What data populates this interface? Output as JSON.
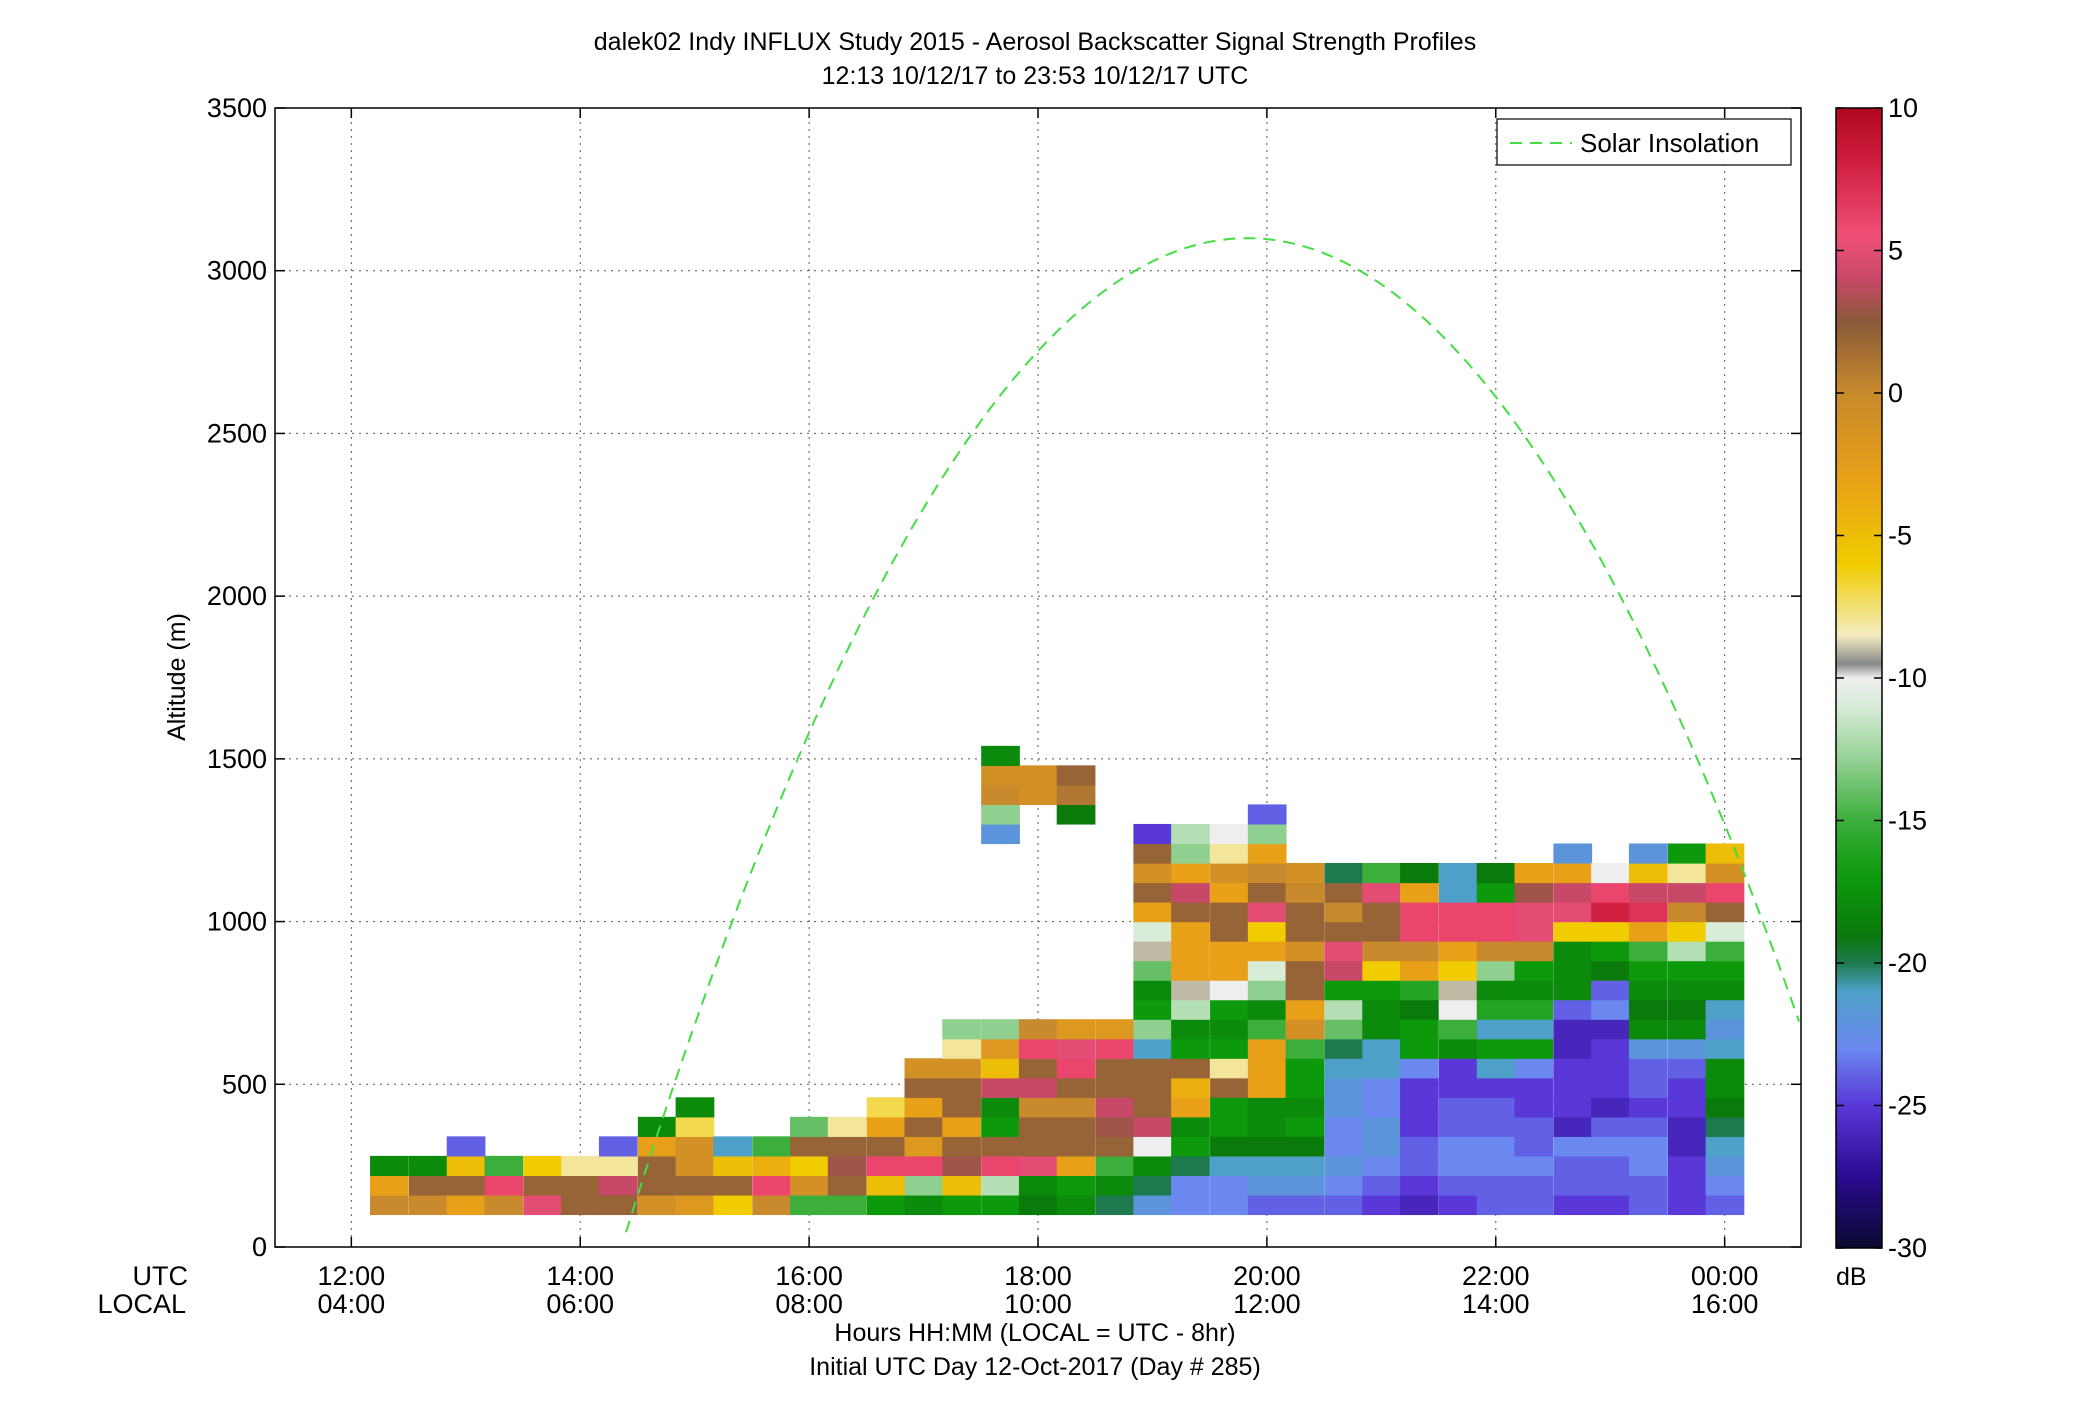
{
  "chart_data": {
    "type": "heatmap",
    "title": "dalek02 Indy INFLUX Study 2015 - Aerosol Backscatter Signal Strength Profiles",
    "subtitle": "12:13 10/12/17 to 23:53 10/12/17  UTC",
    "xlabel": "Hours HH:MM  (LOCAL = UTC - 8hr)",
    "xlabel2": "Initial UTC Day 12-Oct-2017 (Day # 285)",
    "ylabel": "Altitude (m)",
    "xlim": [
      11.333,
      24.667
    ],
    "ylim": [
      0,
      3500
    ],
    "grid": true,
    "x_axis_row_labels": [
      "UTC",
      "LOCAL"
    ],
    "x_ticks": [
      {
        "x": 12,
        "utc": "12:00",
        "local": "04:00"
      },
      {
        "x": 14,
        "utc": "14:00",
        "local": "06:00"
      },
      {
        "x": 16,
        "utc": "16:00",
        "local": "08:00"
      },
      {
        "x": 18,
        "utc": "18:00",
        "local": "10:00"
      },
      {
        "x": 20,
        "utc": "20:00",
        "local": "12:00"
      },
      {
        "x": 22,
        "utc": "22:00",
        "local": "14:00"
      },
      {
        "x": 24,
        "utc": "00:00",
        "local": "16:00"
      }
    ],
    "y_ticks": [
      0,
      500,
      1000,
      1500,
      2000,
      2500,
      3000,
      3500
    ],
    "legend": {
      "label": "Solar Insolation",
      "position": "top-right",
      "color": "#44dd44",
      "style": "dashed"
    },
    "solar_insolation": {
      "peak_x": 19.83,
      "peak_y": 3100,
      "x_at_zero": [
        14.35,
        25.3
      ]
    },
    "colorbar": {
      "unit": "dB",
      "min": -30,
      "max": 10,
      "ticks": [
        10,
        5,
        0,
        -5,
        -10,
        -15,
        -20,
        -25,
        -30
      ],
      "stops": [
        {
          "v": -30,
          "c": "#0a0a30"
        },
        {
          "v": -27.5,
          "c": "#2a0a90"
        },
        {
          "v": -25,
          "c": "#5a38d8"
        },
        {
          "v": -23,
          "c": "#6a88f0"
        },
        {
          "v": -21,
          "c": "#4ea0c8"
        },
        {
          "v": -20,
          "c": "#1e7a4e"
        },
        {
          "v": -19,
          "c": "#0a7a0a"
        },
        {
          "v": -17,
          "c": "#0c990c"
        },
        {
          "v": -15,
          "c": "#3cae3c"
        },
        {
          "v": -13,
          "c": "#8fcf8f"
        },
        {
          "v": -11,
          "c": "#d8ecd8"
        },
        {
          "v": -10,
          "c": "#eeeeee"
        },
        {
          "v": -9.5,
          "c": "#888888"
        },
        {
          "v": -8.5,
          "c": "#f4ecc0"
        },
        {
          "v": -6,
          "c": "#f0cc00"
        },
        {
          "v": -3,
          "c": "#e8a018"
        },
        {
          "v": 0,
          "c": "#c88a2c"
        },
        {
          "v": 2.5,
          "c": "#8a5a3a"
        },
        {
          "v": 4,
          "c": "#c84868"
        },
        {
          "v": 5.5,
          "c": "#f05078"
        },
        {
          "v": 8,
          "c": "#d02040"
        },
        {
          "v": 10,
          "c": "#b00820"
        }
      ]
    },
    "dt_hours": 0.333,
    "dz_m": 60,
    "z0_m": 100,
    "profiles": [
      {
        "t": 12.33,
        "v": [
          0,
          -3,
          -18
        ]
      },
      {
        "t": 12.67,
        "v": [
          0,
          2,
          -18
        ]
      },
      {
        "t": 13.0,
        "v": [
          -3,
          2,
          -5,
          -24
        ]
      },
      {
        "t": 13.33,
        "v": [
          0,
          6,
          -15
        ]
      },
      {
        "t": 13.67,
        "v": [
          5,
          2,
          -6
        ]
      },
      {
        "t": 14.0,
        "v": [
          2,
          2,
          -8
        ]
      },
      {
        "t": 14.33,
        "v": [
          2,
          4,
          -8,
          -24
        ]
      },
      {
        "t": 14.67,
        "v": [
          -1,
          2,
          2,
          -3,
          -18
        ]
      },
      {
        "t": 15.0,
        "v": [
          -2,
          2,
          -1,
          -1,
          -7,
          -18
        ]
      },
      {
        "t": 15.33,
        "v": [
          -6,
          2,
          -5,
          -21
        ]
      },
      {
        "t": 15.67,
        "v": [
          0,
          6,
          -4,
          -15
        ]
      },
      {
        "t": 16.0,
        "v": [
          -15,
          -1,
          -6,
          2,
          -14
        ]
      },
      {
        "t": 16.33,
        "v": [
          -15,
          2,
          3,
          2,
          -8
        ]
      },
      {
        "t": 16.67,
        "v": [
          -17,
          -5,
          6,
          2,
          -3,
          -7
        ]
      },
      {
        "t": 17.0,
        "v": [
          -18,
          -13,
          6,
          -2,
          2,
          -3,
          2,
          -1
        ]
      },
      {
        "t": 17.33,
        "v": [
          -17,
          -5,
          3,
          2,
          -3,
          2,
          2,
          -1,
          -8,
          -13
        ]
      },
      {
        "t": 17.67,
        "v": [
          -17,
          -12,
          6,
          2,
          -17,
          -18,
          4,
          -5,
          -2,
          -13,
          "_",
          "_",
          "_",
          "_",
          "_",
          "_",
          "_",
          "_",
          "_",
          -22,
          -13,
          0,
          -1,
          -18
        ]
      },
      {
        "t": 18.0,
        "v": [
          -19,
          -18,
          5,
          2,
          2,
          0,
          4,
          2,
          6,
          0,
          "_",
          "_",
          "_",
          "_",
          "_",
          "_",
          "_",
          "_",
          "_",
          "_",
          "_",
          -1,
          -1
        ]
      },
      {
        "t": 18.33,
        "v": [
          -18,
          -17,
          -3,
          2,
          2,
          0,
          2,
          6,
          5,
          -2,
          "_",
          "_",
          "_",
          "_",
          "_",
          "_",
          "_",
          "_",
          "_",
          "_",
          -19,
          1,
          2
        ]
      },
      {
        "t": 18.67,
        "v": [
          -20,
          -18,
          -15,
          2,
          3,
          4,
          2,
          2,
          6,
          -2
        ]
      },
      {
        "t": 19.0,
        "v": [
          -22,
          -20,
          -18,
          -10,
          4,
          2,
          2,
          2,
          -21,
          -13,
          -17,
          -18,
          -14,
          -9,
          -11,
          -3,
          2,
          -1,
          2,
          -25
        ]
      },
      {
        "t": 19.33,
        "v": [
          -23,
          -23,
          -20,
          -17,
          -18,
          -3,
          -4,
          2,
          -17,
          -18,
          -12,
          -9,
          -3,
          -3,
          -3,
          2,
          4,
          -3,
          -13,
          -12
        ]
      },
      {
        "t": 19.67,
        "v": [
          -23,
          -23,
          -21,
          -19,
          -17,
          -17,
          2,
          -8,
          -17,
          -18,
          -17,
          -10,
          -3,
          -3,
          2,
          2,
          -3,
          -1,
          -8,
          -10
        ]
      },
      {
        "t": 20.0,
        "v": [
          -24,
          -22,
          -21,
          -19,
          -18,
          -18,
          -3,
          -3,
          -3,
          -15,
          -18,
          -13,
          -11,
          -3,
          -6,
          5,
          2,
          0,
          -3,
          -13,
          -24
        ]
      },
      {
        "t": 20.33,
        "v": [
          -24,
          -22,
          -21,
          -19,
          -17,
          -18,
          -17,
          -17,
          -15,
          -1,
          -3,
          2,
          2,
          -1,
          2,
          2,
          0,
          -1
        ]
      },
      {
        "t": 20.67,
        "v": [
          -24,
          -23,
          -22,
          -23,
          -23,
          -22,
          -22,
          -21,
          -20,
          -14,
          -12,
          -17,
          4,
          5,
          2,
          0,
          2,
          -20
        ]
      },
      {
        "t": 21.0,
        "v": [
          -25,
          -24,
          -23,
          -22,
          -22,
          -23,
          -23,
          -21,
          -21,
          -18,
          -18,
          -17,
          -6,
          0,
          2,
          2,
          5,
          -15
        ]
      },
      {
        "t": 21.33,
        "v": [
          -26,
          -25,
          -24,
          -24,
          -25,
          -25,
          -25,
          -23,
          -17,
          -17,
          -19,
          -16,
          -3,
          0,
          6,
          6,
          -3,
          -19
        ]
      },
      {
        "t": 21.67,
        "v": [
          -25,
          -24,
          -23,
          -23,
          -24,
          -24,
          -25,
          -25,
          -18,
          -15,
          -10,
          -9,
          -6,
          -3,
          6,
          6,
          -21,
          -21
        ]
      },
      {
        "t": 22.0,
        "v": [
          -24,
          -24,
          -23,
          -23,
          -24,
          -24,
          -25,
          -21,
          -17,
          -21,
          -16,
          -18,
          -13,
          0,
          6,
          6,
          -17,
          -19
        ]
      },
      {
        "t": 22.33,
        "v": [
          -24,
          -24,
          -23,
          -24,
          -24,
          -25,
          -25,
          -23,
          -17,
          -21,
          -16,
          -18,
          -17,
          0,
          5,
          5,
          3,
          -3
        ]
      },
      {
        "t": 22.67,
        "v": [
          -25,
          -24,
          -24,
          -23,
          -26,
          -25,
          -25,
          -25,
          -26,
          -26,
          -24,
          -18,
          -18,
          -18,
          -6,
          5,
          4,
          -3,
          -22
        ]
      },
      {
        "t": 23.0,
        "v": [
          -25,
          -24,
          -24,
          -23,
          -24,
          -26,
          -25,
          -25,
          -25,
          -26,
          -23,
          -24,
          -19,
          -17,
          -6,
          8,
          6,
          -10
        ]
      },
      {
        "t": 23.33,
        "v": [
          -24,
          -24,
          -23,
          -23,
          -24,
          -25,
          -24,
          -24,
          -22,
          -18,
          -19,
          -18,
          -17,
          -15,
          -3,
          7,
          4,
          -5,
          -22
        ]
      },
      {
        "t": 23.67,
        "v": [
          -25,
          -25,
          -25,
          -26,
          -26,
          -25,
          -25,
          -24,
          -22,
          -18,
          -19,
          -18,
          -17,
          -12,
          -6,
          0,
          4,
          -8,
          -17
        ]
      },
      {
        "t": 24.0,
        "v": [
          -24,
          -23,
          -22,
          -21,
          -20,
          -19,
          -18,
          -18,
          -21,
          -22,
          -21,
          -18,
          -17,
          -15,
          -11,
          2,
          6,
          -1,
          -5
        ]
      }
    ]
  }
}
